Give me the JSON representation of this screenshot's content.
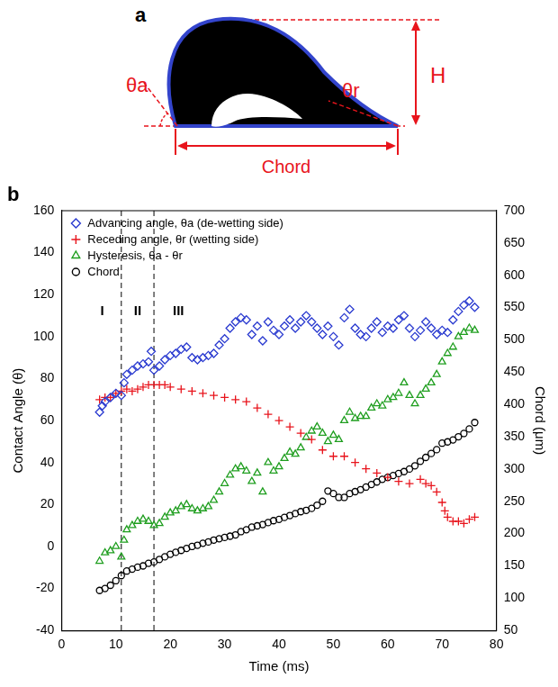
{
  "diagram": {
    "label": "a",
    "advancing": "θa",
    "receding": "θr",
    "height": "H",
    "chord": "Chord"
  },
  "chart_data": {
    "type": "scatter",
    "panel_label": "b",
    "x_label": "Time (ms)",
    "y_label": "Contact Angle (θ)",
    "y2_label": "Chord (μm)",
    "xlim": [
      0,
      80
    ],
    "xticks": [
      0,
      10,
      20,
      30,
      40,
      50,
      60,
      70,
      80
    ],
    "ylim": [
      -40,
      160
    ],
    "yticks": [
      -40,
      -20,
      0,
      20,
      40,
      60,
      80,
      100,
      120,
      140,
      160
    ],
    "y2lim": [
      50,
      700
    ],
    "y2ticks": [
      50,
      100,
      150,
      200,
      250,
      300,
      350,
      400,
      450,
      500,
      550,
      600,
      650,
      700
    ],
    "grid": false,
    "legend": "upper left",
    "region_boundaries": [
      11,
      17
    ],
    "annotations": [
      {
        "text": "I",
        "x": 7.5,
        "y": 112
      },
      {
        "text": "II",
        "x": 14,
        "y": 112
      },
      {
        "text": "III",
        "x": 21.5,
        "y": 112
      }
    ],
    "series": [
      {
        "name": "Advancing angle, θa (de-wetting side)",
        "color": "#2b3bd0",
        "marker": "diamond",
        "x": [
          7,
          7.5,
          8,
          9,
          10,
          11,
          11.5,
          12,
          13,
          14,
          15,
          16,
          16.5,
          17,
          18,
          19,
          20,
          21,
          22,
          23,
          24,
          25,
          26,
          27,
          28,
          29,
          30,
          31,
          32,
          33,
          34,
          35,
          36,
          37,
          38,
          39,
          40,
          41,
          42,
          43,
          44,
          45,
          46,
          47,
          48,
          49,
          50,
          51,
          52,
          53,
          54,
          55,
          56,
          57,
          58,
          59,
          60,
          61,
          62,
          63,
          64,
          65,
          66,
          67,
          68,
          69,
          70,
          71,
          72,
          73,
          74,
          75,
          76
        ],
        "values": [
          64,
          67,
          69,
          71,
          73,
          72,
          78,
          82,
          84,
          86,
          87,
          88,
          93,
          84,
          86,
          89,
          91,
          92,
          94,
          95,
          90,
          89,
          90,
          91,
          92,
          96,
          99,
          104,
          107,
          109,
          108,
          101,
          105,
          98,
          107,
          103,
          101,
          105,
          108,
          104,
          107,
          110,
          107,
          104,
          101,
          105,
          100,
          96,
          109,
          113,
          104,
          101,
          100,
          104,
          107,
          102,
          105,
          104,
          108,
          110,
          104,
          100,
          103,
          107,
          104,
          101,
          103,
          102,
          108,
          112,
          115,
          117,
          114
        ]
      },
      {
        "name": "Receding angle, θr (wetting side)",
        "color": "#e8141c",
        "marker": "plus",
        "x": [
          7,
          8,
          9,
          10,
          11,
          12,
          13,
          14,
          15,
          16,
          17,
          18,
          19,
          20,
          22,
          24,
          26,
          28,
          30,
          32,
          34,
          36,
          38,
          40,
          42,
          44,
          46,
          48,
          50,
          52,
          54,
          56,
          58,
          60,
          62,
          64,
          66,
          67,
          68,
          69,
          70,
          70.5,
          71,
          72,
          73,
          74,
          75,
          76
        ],
        "values": [
          70,
          71,
          71,
          73,
          74,
          75,
          74,
          75,
          76,
          77,
          77,
          77,
          77,
          76,
          75,
          74,
          73,
          72,
          71,
          70,
          69,
          66,
          63,
          60,
          57,
          54,
          51,
          46,
          43,
          43,
          40,
          37,
          35,
          33,
          31,
          30,
          32,
          30,
          29,
          26,
          21,
          17,
          14,
          12,
          12,
          11,
          13,
          14
        ]
      },
      {
        "name": "Hysteresis, θa - θr",
        "color": "#1f9e1f",
        "marker": "triangle",
        "x": [
          7,
          8,
          9,
          10,
          11,
          11.5,
          12,
          13,
          14,
          15,
          16,
          17,
          18,
          19,
          20,
          21,
          22,
          23,
          24,
          25,
          26,
          27,
          28,
          29,
          30,
          31,
          32,
          33,
          34,
          35,
          36,
          37,
          38,
          39,
          40,
          41,
          42,
          43,
          44,
          45,
          46,
          47,
          48,
          49,
          50,
          51,
          52,
          53,
          54,
          55,
          56,
          57,
          58,
          59,
          60,
          61,
          62,
          63,
          64,
          65,
          66,
          67,
          68,
          69,
          70,
          71,
          72,
          73,
          74,
          75,
          76
        ],
        "values": [
          -7,
          -3,
          -2,
          0,
          -5,
          3,
          8,
          10,
          12,
          13,
          12,
          10,
          11,
          14,
          16,
          17,
          19,
          20,
          18,
          17,
          18,
          19,
          22,
          26,
          30,
          34,
          37,
          38,
          36,
          31,
          35,
          26,
          40,
          36,
          38,
          42,
          45,
          44,
          47,
          52,
          55,
          57,
          54,
          50,
          53,
          51,
          60,
          64,
          61,
          62,
          62,
          66,
          68,
          67,
          70,
          71,
          73,
          78,
          72,
          68,
          72,
          75,
          78,
          82,
          88,
          92,
          95,
          100,
          102,
          104,
          103
        ]
      },
      {
        "name": "Chord",
        "color": "#000000",
        "marker": "circle",
        "axis": "y2",
        "x": [
          7,
          8,
          9,
          10,
          11,
          12,
          13,
          14,
          15,
          16,
          17,
          18,
          19,
          20,
          21,
          22,
          23,
          24,
          25,
          26,
          27,
          28,
          29,
          30,
          31,
          32,
          33,
          34,
          35,
          36,
          37,
          38,
          39,
          40,
          41,
          42,
          43,
          44,
          45,
          46,
          47,
          48,
          49,
          50,
          51,
          52,
          53,
          54,
          55,
          56,
          57,
          58,
          59,
          60,
          61,
          62,
          63,
          64,
          65,
          66,
          67,
          68,
          69,
          70,
          71,
          72,
          73,
          74,
          75,
          76
        ],
        "values": [
          112,
          115,
          120,
          127,
          135,
          142,
          145,
          148,
          150,
          154,
          156,
          160,
          164,
          168,
          171,
          174,
          177,
          180,
          182,
          185,
          187,
          190,
          192,
          194,
          196,
          198,
          203,
          206,
          210,
          212,
          214,
          217,
          220,
          222,
          225,
          228,
          231,
          234,
          236,
          239,
          244,
          250,
          266,
          262,
          256,
          256,
          262,
          265,
          268,
          272,
          276,
          280,
          284,
          287,
          290,
          293,
          296,
          300,
          305,
          312,
          318,
          324,
          330,
          340,
          342,
          345,
          350,
          355,
          362,
          372
        ]
      }
    ]
  }
}
